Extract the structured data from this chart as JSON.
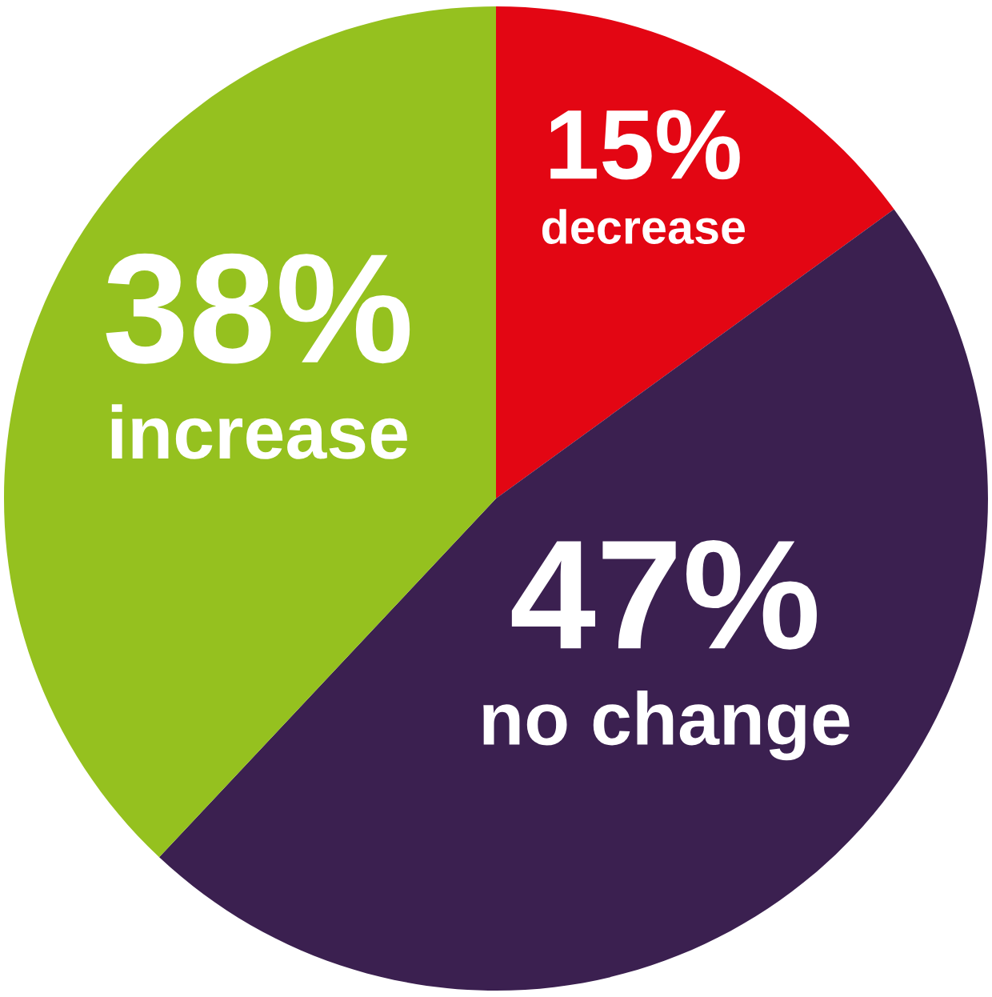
{
  "chart_data": {
    "type": "pie",
    "categories": [
      "decrease",
      "no change",
      "increase"
    ],
    "values": [
      15,
      47,
      38
    ],
    "value_labels": [
      "15%",
      "47%",
      "38%"
    ],
    "colors": [
      "#e30613",
      "#3b2050",
      "#95c11f"
    ],
    "legend": false
  }
}
